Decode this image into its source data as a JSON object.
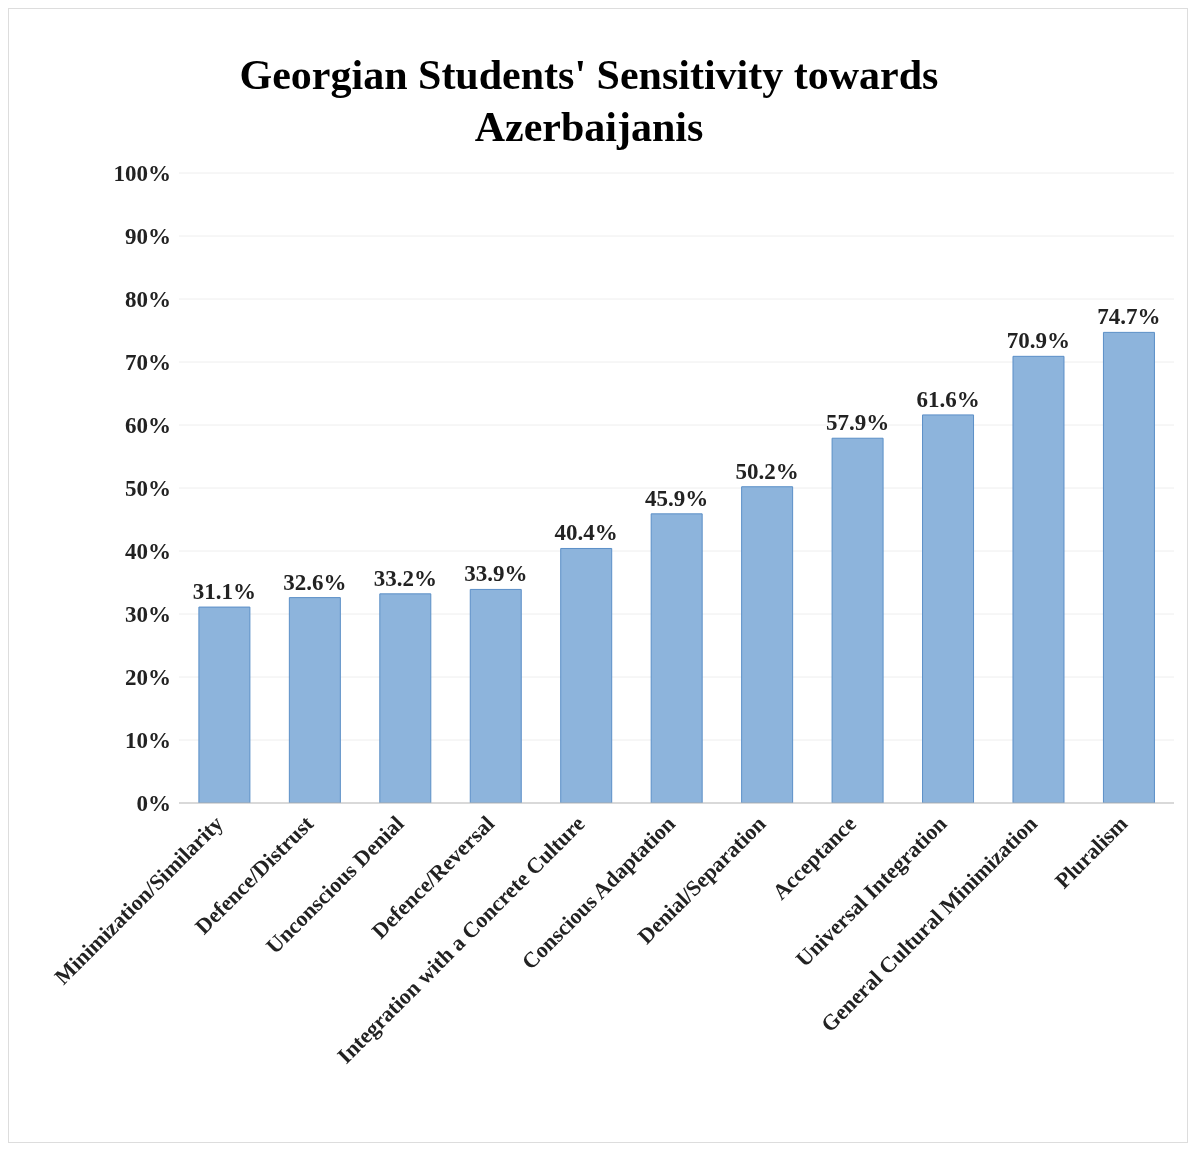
{
  "chart_data": {
    "type": "bar",
    "title": "Georgian Students' Sensitivity towards Azerbaijanis",
    "categories": [
      "Minimization/Similarity",
      "Defence/Distrust",
      "Unconscious Denial",
      "Defence/Reversal",
      "Integration with a Concrete Culture",
      "Conscious Adaptation",
      "Denial/Separation",
      "Acceptance",
      "Universal Integration",
      "General Cultural Minimization",
      "Pluralism"
    ],
    "values": [
      31.1,
      32.6,
      33.2,
      33.9,
      40.4,
      45.9,
      50.2,
      57.9,
      61.6,
      70.9,
      74.7
    ],
    "value_labels": [
      "31.1%",
      "32.6%",
      "33.2%",
      "33.9%",
      "40.4%",
      "45.9%",
      "50.2%",
      "57.9%",
      "61.6%",
      "70.9%",
      "74.7%"
    ],
    "color": "#8db4dc",
    "ylim": [
      0,
      100
    ],
    "yticks": [
      {
        "value": 0,
        "label": "0%"
      },
      {
        "value": 10,
        "label": "10%"
      },
      {
        "value": 20,
        "label": "20%"
      },
      {
        "value": 30,
        "label": "30%"
      },
      {
        "value": 40,
        "label": "40%"
      },
      {
        "value": 50,
        "label": "50%"
      },
      {
        "value": 60,
        "label": "60%"
      },
      {
        "value": 70,
        "label": "70%"
      },
      {
        "value": 80,
        "label": "80%"
      },
      {
        "value": 90,
        "label": "90%"
      },
      {
        "value": 100,
        "label": "100%"
      }
    ],
    "grid": "y"
  }
}
